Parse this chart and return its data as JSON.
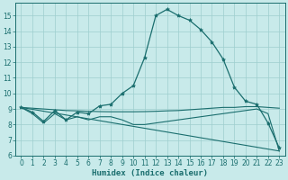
{
  "bg_color": "#c8eaea",
  "grid_color": "#9ecece",
  "line_color": "#1a6e6e",
  "xlabel": "Humidex (Indice chaleur)",
  "xlim": [
    -0.5,
    23.5
  ],
  "ylim": [
    6,
    15.8
  ],
  "yticks": [
    6,
    7,
    8,
    9,
    10,
    11,
    12,
    13,
    14,
    15
  ],
  "xticks": [
    0,
    1,
    2,
    3,
    4,
    5,
    6,
    7,
    8,
    9,
    10,
    11,
    12,
    13,
    14,
    15,
    16,
    17,
    18,
    19,
    20,
    21,
    22,
    23
  ],
  "line1_x": [
    0,
    1,
    2,
    3,
    4,
    5,
    6,
    7,
    8,
    9,
    10,
    11,
    12,
    13,
    14,
    15,
    16,
    17,
    18,
    19,
    20,
    21,
    22,
    23
  ],
  "line1_y": [
    9.1,
    8.8,
    8.2,
    8.9,
    8.3,
    8.8,
    8.7,
    9.2,
    9.3,
    10.0,
    10.5,
    12.3,
    15.0,
    15.4,
    15.0,
    14.7,
    14.1,
    13.3,
    12.2,
    10.4,
    9.5,
    9.3,
    8.1,
    6.5
  ],
  "line2_x": [
    0,
    1,
    2,
    3,
    4,
    5,
    6,
    7,
    8,
    9,
    10,
    11,
    12,
    13,
    14,
    15,
    16,
    17,
    18,
    19,
    20,
    21,
    22,
    23
  ],
  "line2_y": [
    9.1,
    8.7,
    8.1,
    8.7,
    8.3,
    8.5,
    8.3,
    8.5,
    8.5,
    8.3,
    8.0,
    8.0,
    8.1,
    8.2,
    8.3,
    8.4,
    8.5,
    8.6,
    8.7,
    8.8,
    8.9,
    9.0,
    8.7,
    6.3
  ],
  "line3_x": [
    0,
    1,
    2,
    3,
    4,
    5,
    6,
    7,
    8,
    9,
    10,
    11,
    12,
    13,
    14,
    15,
    16,
    17,
    18,
    19,
    20,
    21,
    22,
    23
  ],
  "line3_y": [
    9.1,
    9.05,
    9.0,
    8.95,
    8.9,
    8.88,
    8.85,
    8.83,
    8.82,
    8.82,
    8.82,
    8.83,
    8.85,
    8.88,
    8.9,
    8.95,
    9.0,
    9.05,
    9.1,
    9.1,
    9.15,
    9.15,
    9.1,
    9.05
  ],
  "line4_x": [
    0,
    23
  ],
  "line4_y": [
    9.1,
    6.3
  ]
}
